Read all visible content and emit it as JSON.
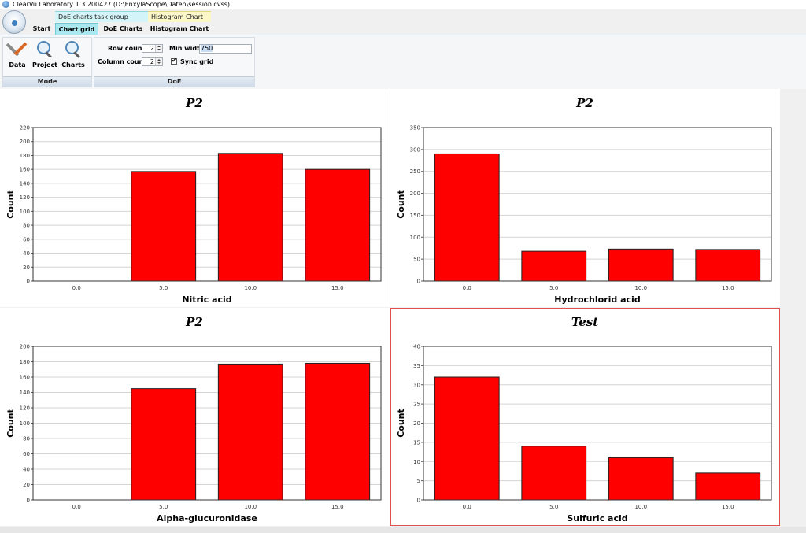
{
  "window": {
    "title": "ClearVu Laboratory 1.3.200427 (D:\\EnxylaScope\\Daten\\session.cvss)"
  },
  "context_groups": {
    "doe": "DoE charts task group",
    "histogram": "Histogram Chart"
  },
  "tabs": [
    {
      "label": "Start"
    },
    {
      "label": "Chart grid",
      "active": true
    },
    {
      "label": "DoE Charts"
    },
    {
      "label": "Histogram Chart"
    }
  ],
  "ribbon": {
    "mode_group": {
      "label": "Mode",
      "buttons": [
        {
          "label": "Data",
          "icon": "tools-icon"
        },
        {
          "label": "Project",
          "icon": "magnifier-icon"
        },
        {
          "label": "Charts",
          "icon": "magnifier-chart-icon"
        }
      ]
    },
    "doe_group": {
      "label": "DoE",
      "row_count_label": "Row count",
      "row_count": "2",
      "column_count_label": "Column count",
      "column_count": "2",
      "min_width_label": "Min width",
      "min_width": "750",
      "sync_grid_label": "Sync grid",
      "sync_grid": true
    }
  },
  "colors": {
    "bar": "#ff0000",
    "bar_stroke": "#222222",
    "selected_border": "#e05050"
  },
  "chart_data": [
    {
      "type": "bar",
      "title": "P2",
      "xlabel": "Nitric acid",
      "ylabel": "Count",
      "categories": [
        "0.0",
        "5.0",
        "10.0",
        "15.0"
      ],
      "values": [
        0,
        157,
        183,
        160
      ],
      "ylim": [
        0,
        220
      ],
      "yticks": [
        0,
        20,
        40,
        60,
        80,
        100,
        120,
        140,
        160,
        180,
        200,
        220
      ],
      "grid": true,
      "selected": false
    },
    {
      "type": "bar",
      "title": "P2",
      "xlabel": "Hydrochlorid acid",
      "ylabel": "Count",
      "categories": [
        "0.0",
        "5.0",
        "10.0",
        "15.0"
      ],
      "values": [
        290,
        68,
        73,
        72
      ],
      "ylim": [
        0,
        350
      ],
      "yticks": [
        0,
        50,
        100,
        150,
        200,
        250,
        300,
        350
      ],
      "grid": true,
      "selected": false
    },
    {
      "type": "bar",
      "title": "P2",
      "xlabel": "Alpha-glucuronidase",
      "ylabel": "Count",
      "categories": [
        "0.0",
        "5.0",
        "10.0",
        "15.0"
      ],
      "values": [
        0,
        145,
        177,
        178
      ],
      "ylim": [
        0,
        200
      ],
      "yticks": [
        0,
        20,
        40,
        60,
        80,
        100,
        120,
        140,
        160,
        180,
        200
      ],
      "grid": true,
      "selected": false
    },
    {
      "type": "bar",
      "title": "Test",
      "xlabel": "Sulfuric acid",
      "ylabel": "Count",
      "categories": [
        "0.0",
        "5.0",
        "10.0",
        "15.0"
      ],
      "values": [
        32,
        14,
        11,
        7
      ],
      "ylim": [
        0,
        40
      ],
      "yticks": [
        0,
        5,
        10,
        15,
        20,
        25,
        30,
        35,
        40
      ],
      "grid": true,
      "selected": true
    }
  ]
}
